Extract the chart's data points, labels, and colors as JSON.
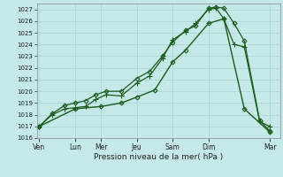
{
  "xlabel": "Pression niveau de la mer( hPa )",
  "background_color": "#c5e8e8",
  "grid_color": "#a8d4d4",
  "line_color": "#1a5c1a",
  "ylim": [
    1016,
    1027.5
  ],
  "yticks": [
    1016,
    1017,
    1018,
    1019,
    1020,
    1021,
    1022,
    1023,
    1024,
    1025,
    1026,
    1027
  ],
  "xtick_labels": [
    "Ven",
    "Lun",
    "Mer",
    "Jeu",
    "Sam",
    "Dim",
    "Mar"
  ],
  "xtick_positions": [
    0,
    14,
    24,
    38,
    52,
    66,
    90
  ],
  "xlim": [
    -1,
    94
  ],
  "series": [
    {
      "x": [
        0,
        5,
        10,
        14,
        18,
        22,
        26,
        32,
        38,
        43,
        48,
        52,
        57,
        61,
        66,
        69,
        72,
        76,
        80,
        86,
        90
      ],
      "y": [
        1017.0,
        1018.0,
        1018.5,
        1018.6,
        1018.7,
        1019.3,
        1019.7,
        1019.6,
        1020.7,
        1021.3,
        1022.8,
        1024.4,
        1025.1,
        1025.8,
        1027.0,
        1027.1,
        1026.2,
        1024.0,
        1023.8,
        1017.4,
        1017.0
      ],
      "marker": "+",
      "ms": 4,
      "lw": 0.9,
      "filled": true
    },
    {
      "x": [
        0,
        5,
        10,
        14,
        18,
        22,
        26,
        32,
        38,
        43,
        48,
        52,
        57,
        61,
        66,
        69,
        72,
        76,
        80,
        86,
        90
      ],
      "y": [
        1017.0,
        1018.1,
        1018.8,
        1019.0,
        1019.2,
        1019.7,
        1020.0,
        1020.0,
        1021.1,
        1021.7,
        1023.0,
        1024.2,
        1025.2,
        1025.6,
        1027.1,
        1027.2,
        1027.1,
        1025.8,
        1024.3,
        1017.5,
        1016.6
      ],
      "marker": "D",
      "ms": 2.5,
      "lw": 0.9,
      "filled": false
    },
    {
      "x": [
        0,
        14,
        24,
        32,
        38,
        45,
        52,
        57,
        66,
        72,
        80,
        90
      ],
      "y": [
        1017.0,
        1018.5,
        1018.7,
        1019.0,
        1019.5,
        1020.1,
        1022.5,
        1023.5,
        1025.8,
        1026.2,
        1018.5,
        1016.5
      ],
      "marker": "D",
      "ms": 2.5,
      "lw": 1.0,
      "filled": false
    }
  ]
}
